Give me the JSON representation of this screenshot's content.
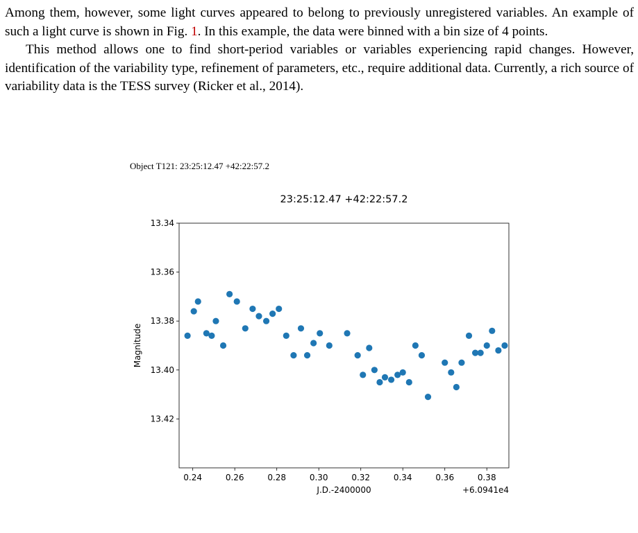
{
  "paragraph1": {
    "before_ref": "Among them, however, some light curves appeared to belong to previously unregistered variables. An example of such a light curve is shown in Fig. ",
    "ref": "1",
    "after_ref": ". In this example, the data were binned with a bin size of 4 points."
  },
  "paragraph2": "This method allows one to find short-period variables or variables experiencing rapid changes. However, identification of the variability type, refinement of parameters, etc., require additional data. Currently, a rich source of variability data is the TESS survey (Ricker et al., 2014).",
  "figure": {
    "caption_title": "Object T121: 23:25:12.47 +42:22:57.2"
  },
  "chart_data": {
    "type": "scatter",
    "title": "23:25:12.47 +42:22:57.2",
    "xlabel": "J.D.-2400000",
    "ylabel": "Magnitude",
    "x_offset_label": "+6.0941e4",
    "xlim": [
      0.2335,
      0.3905
    ],
    "ylim": [
      13.44,
      13.34
    ],
    "y_inverted": true,
    "x_ticks": [
      0.24,
      0.26,
      0.28,
      0.3,
      0.32,
      0.34,
      0.36,
      0.38
    ],
    "x_tick_labels": [
      "0.24",
      "0.26",
      "0.28",
      "0.30",
      "0.32",
      "0.34",
      "0.36",
      "0.38"
    ],
    "y_ticks": [
      13.34,
      13.36,
      13.38,
      13.4,
      13.42
    ],
    "y_tick_labels": [
      "13.34",
      "13.36",
      "13.38",
      "13.40",
      "13.42"
    ],
    "grid": false,
    "marker_color": "#1f77b4",
    "points": [
      {
        "x": 0.2375,
        "y": 13.386
      },
      {
        "x": 0.2405,
        "y": 13.376
      },
      {
        "x": 0.2425,
        "y": 13.372
      },
      {
        "x": 0.2465,
        "y": 13.385
      },
      {
        "x": 0.249,
        "y": 13.386
      },
      {
        "x": 0.251,
        "y": 13.38
      },
      {
        "x": 0.2545,
        "y": 13.39
      },
      {
        "x": 0.2575,
        "y": 13.369
      },
      {
        "x": 0.261,
        "y": 13.372
      },
      {
        "x": 0.265,
        "y": 13.383
      },
      {
        "x": 0.2685,
        "y": 13.375
      },
      {
        "x": 0.2715,
        "y": 13.378
      },
      {
        "x": 0.275,
        "y": 13.38
      },
      {
        "x": 0.278,
        "y": 13.377
      },
      {
        "x": 0.281,
        "y": 13.375
      },
      {
        "x": 0.2845,
        "y": 13.386
      },
      {
        "x": 0.288,
        "y": 13.394
      },
      {
        "x": 0.2915,
        "y": 13.383
      },
      {
        "x": 0.2945,
        "y": 13.394
      },
      {
        "x": 0.2975,
        "y": 13.389
      },
      {
        "x": 0.3005,
        "y": 13.385
      },
      {
        "x": 0.305,
        "y": 13.39
      },
      {
        "x": 0.3135,
        "y": 13.385
      },
      {
        "x": 0.3185,
        "y": 13.394
      },
      {
        "x": 0.321,
        "y": 13.402
      },
      {
        "x": 0.324,
        "y": 13.391
      },
      {
        "x": 0.3265,
        "y": 13.4
      },
      {
        "x": 0.329,
        "y": 13.405
      },
      {
        "x": 0.3315,
        "y": 13.403
      },
      {
        "x": 0.3345,
        "y": 13.404
      },
      {
        "x": 0.3375,
        "y": 13.402
      },
      {
        "x": 0.34,
        "y": 13.401
      },
      {
        "x": 0.343,
        "y": 13.405
      },
      {
        "x": 0.346,
        "y": 13.39
      },
      {
        "x": 0.349,
        "y": 13.394
      },
      {
        "x": 0.352,
        "y": 13.411
      },
      {
        "x": 0.36,
        "y": 13.397
      },
      {
        "x": 0.363,
        "y": 13.401
      },
      {
        "x": 0.3655,
        "y": 13.407
      },
      {
        "x": 0.368,
        "y": 13.397
      },
      {
        "x": 0.3715,
        "y": 13.386
      },
      {
        "x": 0.3745,
        "y": 13.393
      },
      {
        "x": 0.377,
        "y": 13.393
      },
      {
        "x": 0.38,
        "y": 13.39
      },
      {
        "x": 0.3825,
        "y": 13.384
      },
      {
        "x": 0.3855,
        "y": 13.392
      },
      {
        "x": 0.3885,
        "y": 13.39
      }
    ]
  }
}
